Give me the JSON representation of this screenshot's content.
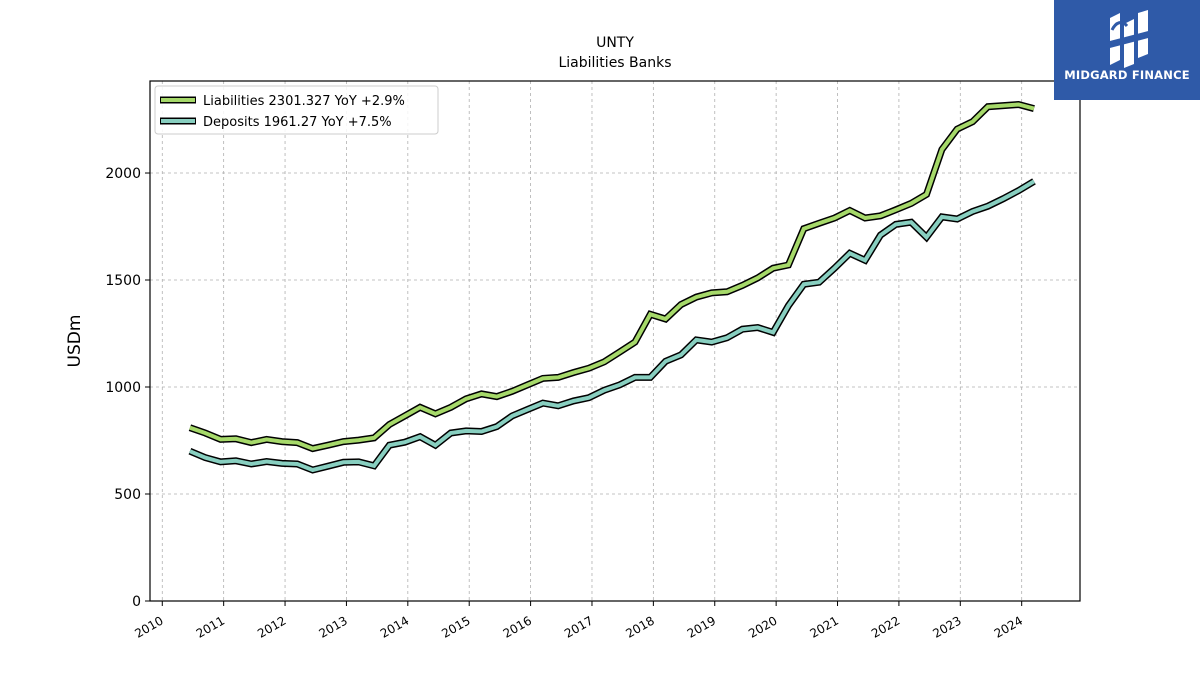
{
  "chart_data": {
    "type": "line",
    "title": "UNTY",
    "subtitle": "Liabilities Banks",
    "xlabel": "",
    "ylabel": "USDm",
    "ylim": [
      0,
      2430
    ],
    "xlim": [
      2009.8,
      2024.95
    ],
    "x_ticks": [
      "2010",
      "2011",
      "2012",
      "2013",
      "2014",
      "2015",
      "2016",
      "2017",
      "2018",
      "2019",
      "2020",
      "2021",
      "2022",
      "2023",
      "2024"
    ],
    "y_ticks": [
      0,
      500,
      1000,
      1500,
      2000
    ],
    "grid": true,
    "legend_position": "top-left",
    "x": [
      2010.45,
      2010.7,
      2010.95,
      2011.2,
      2011.45,
      2011.7,
      2011.95,
      2012.2,
      2012.45,
      2012.7,
      2012.95,
      2013.2,
      2013.45,
      2013.7,
      2013.95,
      2014.2,
      2014.45,
      2014.7,
      2014.95,
      2015.2,
      2015.45,
      2015.7,
      2015.95,
      2016.2,
      2016.45,
      2016.7,
      2016.95,
      2017.2,
      2017.45,
      2017.7,
      2017.95,
      2018.2,
      2018.45,
      2018.7,
      2018.95,
      2019.2,
      2019.45,
      2019.7,
      2019.95,
      2020.2,
      2020.45,
      2020.7,
      2020.95,
      2021.2,
      2021.45,
      2021.7,
      2021.95,
      2022.2,
      2022.45,
      2022.7,
      2022.95,
      2023.2,
      2023.45,
      2023.7,
      2023.95,
      2024.2
    ],
    "series": [
      {
        "name": "Liabilities",
        "legend_label": "Liabilities  2301.327 YoY +2.9%",
        "color": "#a6d96a",
        "values": [
          810,
          785,
          755,
          758,
          740,
          755,
          745,
          740,
          712,
          728,
          745,
          752,
          762,
          825,
          865,
          905,
          875,
          905,
          945,
          968,
          955,
          980,
          1010,
          1040,
          1045,
          1068,
          1088,
          1118,
          1163,
          1210,
          1340,
          1318,
          1385,
          1420,
          1440,
          1445,
          1475,
          1510,
          1555,
          1570,
          1740,
          1765,
          1790,
          1825,
          1790,
          1800,
          1828,
          1858,
          1900,
          2110,
          2205,
          2240,
          2310,
          2315,
          2320,
          2301
        ]
      },
      {
        "name": "Deposits",
        "legend_label": "Deposits  1961.27 YoY +7.5%",
        "color": "#88cfc0",
        "values": [
          700,
          670,
          650,
          655,
          640,
          652,
          643,
          640,
          612,
          630,
          648,
          650,
          632,
          728,
          742,
          768,
          728,
          785,
          795,
          792,
          815,
          865,
          895,
          925,
          912,
          935,
          950,
          985,
          1010,
          1045,
          1045,
          1120,
          1150,
          1220,
          1210,
          1230,
          1270,
          1278,
          1255,
          1380,
          1480,
          1490,
          1555,
          1625,
          1592,
          1710,
          1760,
          1770,
          1700,
          1795,
          1785,
          1820,
          1845,
          1880,
          1918,
          1961
        ]
      }
    ]
  },
  "logo": {
    "text": "MIDGARD FINANCE",
    "background": "#2f5aa8"
  }
}
